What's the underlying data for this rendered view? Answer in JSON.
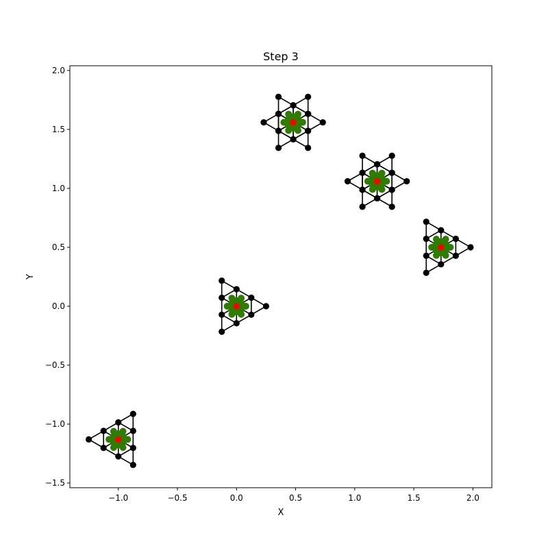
{
  "chart_data": {
    "type": "scatter",
    "title": "Step 3",
    "xlabel": "X",
    "ylabel": "Y",
    "xlim": [
      -1.41,
      2.16
    ],
    "ylim": [
      -1.54,
      2.04
    ],
    "xticks": [
      -1.0,
      -0.5,
      0.0,
      0.5,
      1.0,
      1.5,
      2.0
    ],
    "yticks": [
      -1.5,
      -1.0,
      -0.5,
      0.0,
      0.5,
      1.0,
      1.5,
      2.0
    ],
    "xtick_labels": [
      "−1.0",
      "−0.5",
      "0.0",
      "0.5",
      "1.0",
      "1.5",
      "2.0"
    ],
    "ytick_labels": [
      "−1.5",
      "−1.0",
      "−0.5",
      "0.0",
      "0.5",
      "1.0",
      "1.5",
      "2.0"
    ],
    "grid": false,
    "colors": {
      "edges": "#000000",
      "outer_vertices": "#000000",
      "inner_vertices": "#ff0000",
      "hexagon_vertices": "#2f7d00"
    },
    "clusters": [
      {
        "name": "triangle-1",
        "shape": "triangle",
        "center": [
          0.0,
          0.0
        ],
        "rotation_deg": 0,
        "circumradius": 0.25
      },
      {
        "name": "triangle-2",
        "shape": "triangle",
        "center": [
          -1.0,
          -1.13
        ],
        "rotation_deg": 180,
        "circumradius": 0.25
      },
      {
        "name": "triangle-3",
        "shape": "triangle",
        "center": [
          1.73,
          0.5
        ],
        "rotation_deg": 0,
        "circumradius": 0.25
      },
      {
        "name": "star-1",
        "shape": "star",
        "center": [
          0.48,
          1.56
        ],
        "rotation_deg": 0,
        "circumradius": 0.25
      },
      {
        "name": "star-2",
        "shape": "star",
        "center": [
          1.19,
          1.06
        ],
        "rotation_deg": 0,
        "circumradius": 0.25
      }
    ]
  }
}
